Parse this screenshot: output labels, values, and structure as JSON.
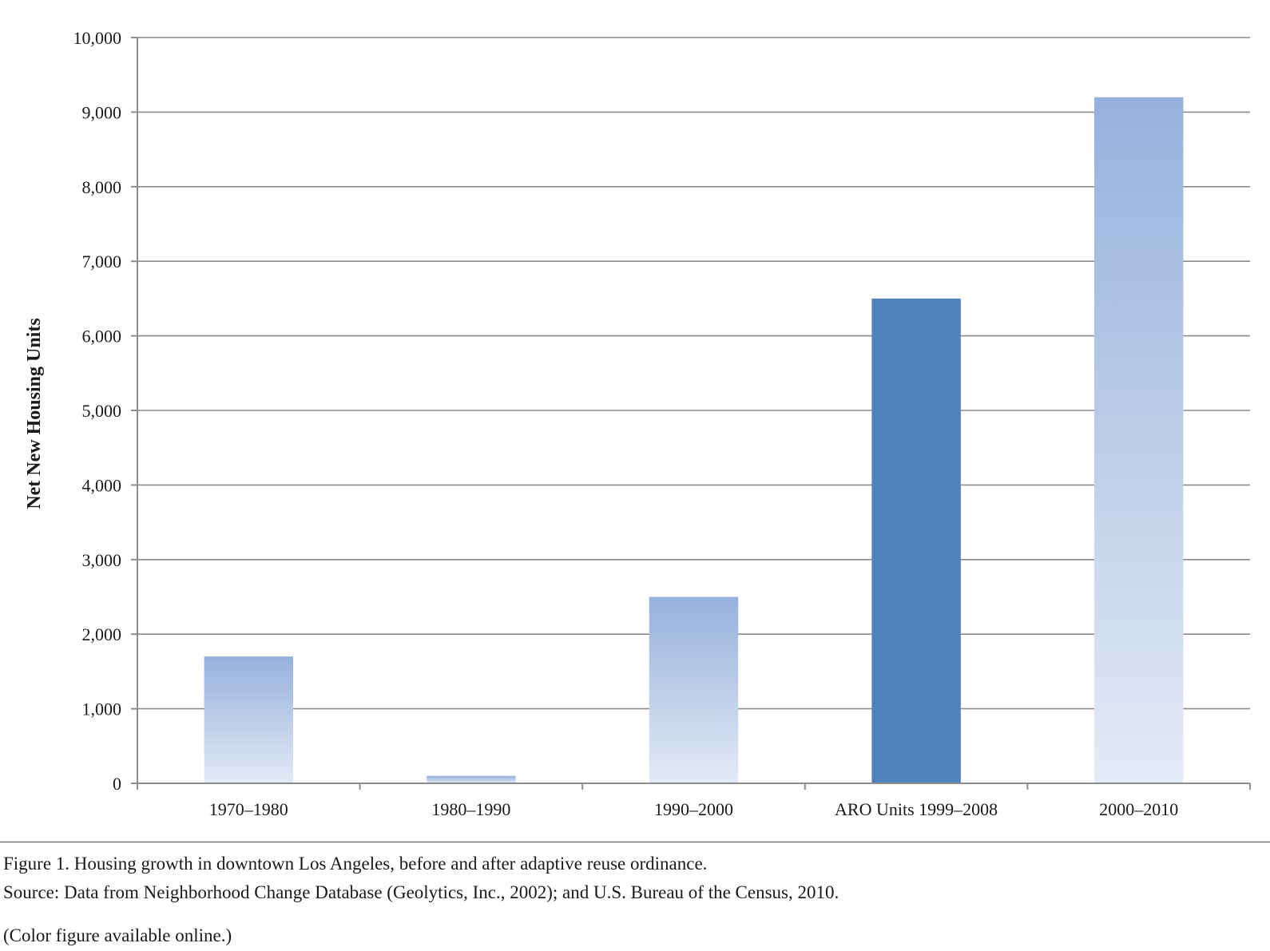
{
  "chart_data": {
    "type": "bar",
    "ylabel": "Net New Housing Units",
    "xlabel": "",
    "title": "",
    "ylim": [
      0,
      10000
    ],
    "yticks": [
      0,
      1000,
      2000,
      3000,
      4000,
      5000,
      6000,
      7000,
      8000,
      9000,
      10000
    ],
    "ytick_labels": [
      "0",
      "1,000",
      "2,000",
      "3,000",
      "4,000",
      "5,000",
      "6,000",
      "7,000",
      "8,000",
      "9,000",
      "10,000"
    ],
    "categories": [
      "1970–1980",
      "1980–1990",
      "1990–2000",
      "ARO Units 1999–2008",
      "2000–2010"
    ],
    "values": [
      1700,
      100,
      2500,
      6500,
      9200
    ],
    "bar_styles": [
      "gradient",
      "gradient",
      "gradient",
      "solid",
      "gradient"
    ],
    "grid": true,
    "legend": "none"
  },
  "colors": {
    "solid_bar": "#4f81bd",
    "gradient_top": "#95b1dc",
    "gradient_bottom": "#e4eaf6",
    "grid": "#8c8c8c"
  },
  "caption": {
    "line1": "Figure 1. Housing growth in downtown Los Angeles, before and after adaptive reuse ordinance.",
    "line2": "Source: Data from Neighborhood Change Database (Geolytics, Inc., 2002); and U.S. Bureau of the Census, 2010.",
    "line3": "(Color figure available online.)"
  }
}
